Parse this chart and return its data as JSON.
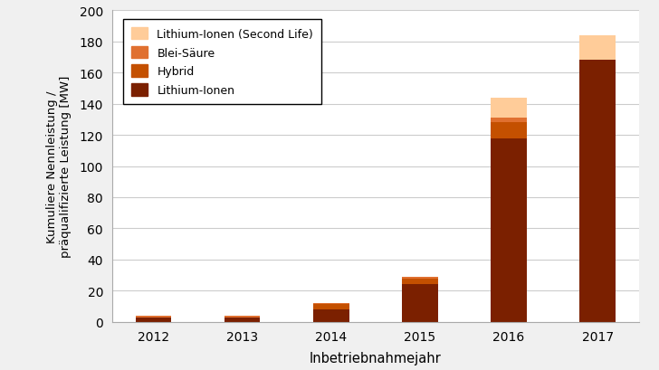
{
  "years": [
    "2012",
    "2013",
    "2014",
    "2015",
    "2016",
    "2017"
  ],
  "lithium_ionen": [
    3.0,
    3.0,
    8.0,
    24.0,
    118.0,
    168.0
  ],
  "hybrid": [
    0.0,
    0.0,
    3.5,
    3.5,
    10.0,
    0.0
  ],
  "blei_saure": [
    1.0,
    1.0,
    0.5,
    1.5,
    3.0,
    0.0
  ],
  "second_life": [
    0.0,
    0.0,
    0.0,
    0.0,
    13.0,
    16.0
  ],
  "color_lithium_ionen": "#7B2000",
  "color_hybrid": "#C45000",
  "color_blei_saure": "#E07030",
  "color_second_life": "#FFCC99",
  "xlabel": "Inbetriebnahmejahr",
  "ylabel": "Kumuliere Nennleistung /\npräqualifizierte Leistung [MW]",
  "ylim": [
    0,
    200
  ],
  "yticks": [
    0,
    20,
    40,
    60,
    80,
    100,
    120,
    140,
    160,
    180,
    200
  ],
  "bar_width": 0.4,
  "fig_bg": "#F0F0F0",
  "plot_bg": "#FFFFFF"
}
